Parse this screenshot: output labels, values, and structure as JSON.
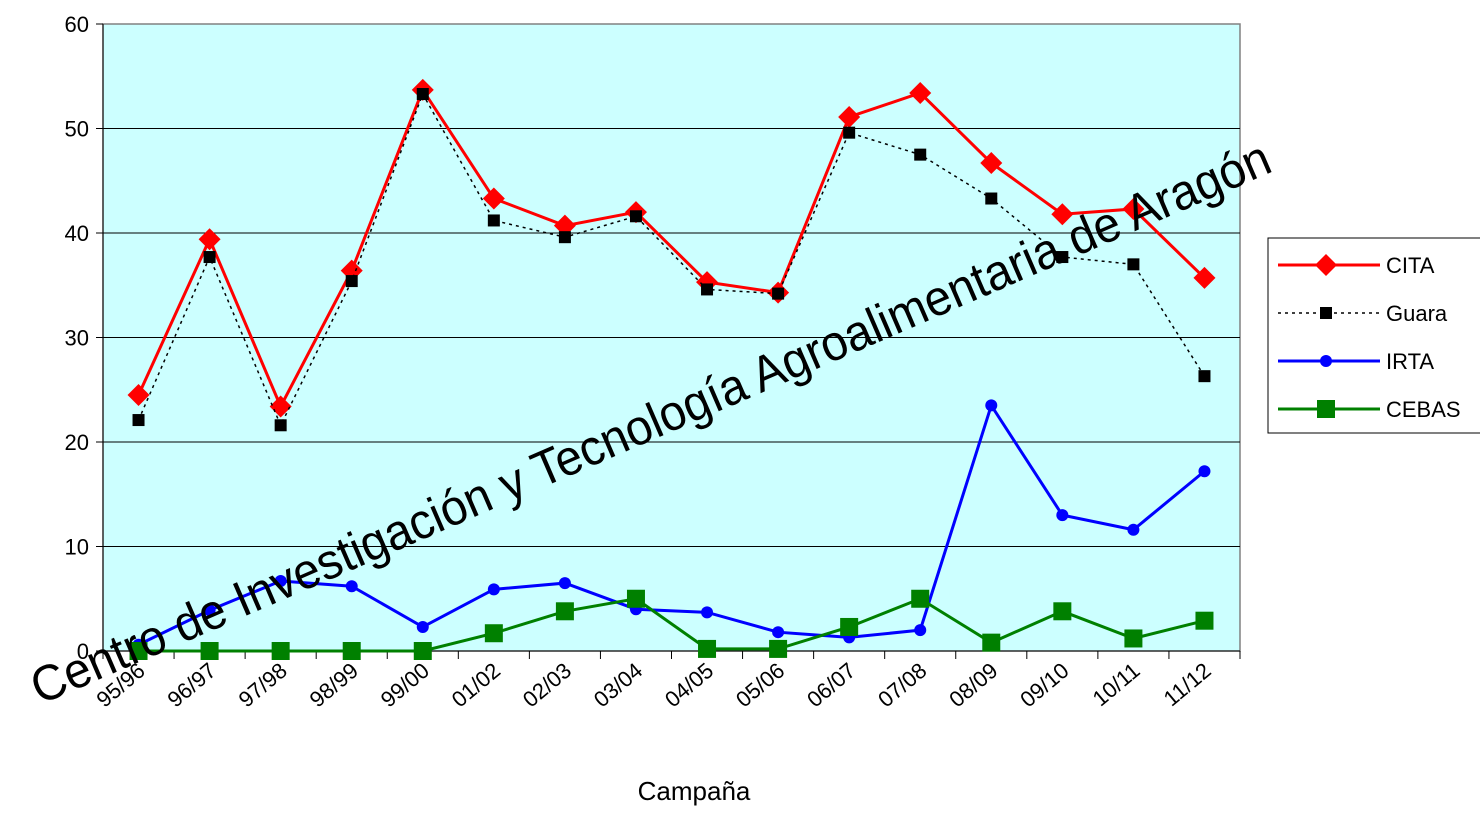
{
  "chart_data": {
    "type": "line",
    "x_label": "Campaña",
    "annotation": "Centro de Investigación y Tecnología Agroalimentaria de Aragón",
    "categories": [
      "95/96",
      "96/97",
      "97/98",
      "98/99",
      "99/00",
      "01/02",
      "02/03",
      "03/04",
      "04/05",
      "05/06",
      "06/07",
      "07/08",
      "08/09",
      "09/10",
      "10/11",
      "11/12"
    ],
    "series": [
      {
        "name": "CITA",
        "color": "#ff0000",
        "marker": "diamond",
        "dash": "solid",
        "values": [
          24.5,
          39.4,
          23.4,
          36.4,
          53.7,
          43.3,
          40.7,
          42.0,
          35.3,
          34.3,
          51.1,
          53.4,
          46.7,
          41.8,
          42.3,
          35.7
        ]
      },
      {
        "name": "Guara",
        "color": "#000000",
        "marker": "square",
        "dash": "dotted",
        "values": [
          22.1,
          37.7,
          21.6,
          35.4,
          53.3,
          41.2,
          39.6,
          41.6,
          34.6,
          34.2,
          49.6,
          47.5,
          43.3,
          37.7,
          37.0,
          26.3
        ]
      },
      {
        "name": "IRTA",
        "color": "#0000ff",
        "marker": "circle",
        "dash": "solid",
        "values": [
          0.6,
          3.9,
          6.7,
          6.2,
          2.3,
          5.9,
          6.5,
          4.0,
          3.7,
          1.8,
          1.3,
          2.0,
          23.5,
          13.0,
          11.6,
          17.2
        ]
      },
      {
        "name": "CEBAS",
        "color": "#008000",
        "marker": "bigsquare",
        "dash": "solid",
        "values": [
          0,
          0,
          0,
          0,
          0,
          1.7,
          3.8,
          5.0,
          0.2,
          0.2,
          2.3,
          5.0,
          0.8,
          3.8,
          1.2,
          2.9
        ]
      }
    ],
    "ylim": [
      0,
      60
    ],
    "yticks": [
      0,
      10,
      20,
      30,
      40,
      50,
      60
    ],
    "grid": true,
    "legend": "right"
  }
}
